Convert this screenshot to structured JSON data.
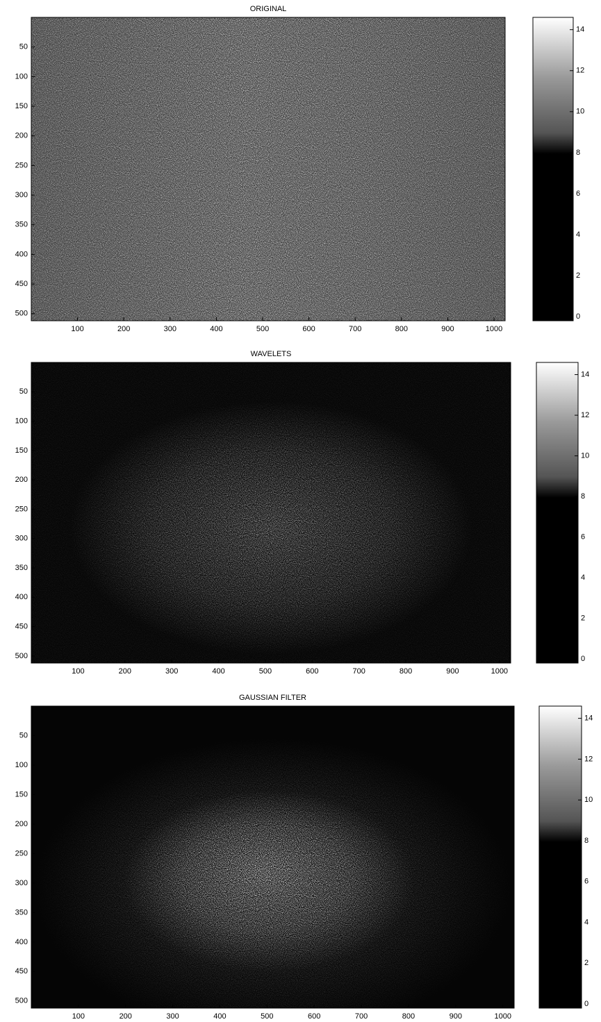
{
  "chart_data": [
    {
      "type": "heatmap",
      "title": "ORIGINAL",
      "colormap": "gray",
      "xlim": [
        0,
        1024
      ],
      "xticks": [
        100,
        200,
        300,
        400,
        500,
        600,
        700,
        800,
        900,
        1000
      ],
      "ylim": [
        0,
        512
      ],
      "yticks": [
        50,
        100,
        150,
        200,
        250,
        300,
        350,
        400,
        450,
        500
      ],
      "y_inverted": true,
      "clim": [
        -0.2,
        14.6
      ],
      "cticks": [
        0,
        2,
        4,
        6,
        8,
        10,
        12,
        14
      ]
    },
    {
      "type": "heatmap",
      "title": "WAVELETS",
      "colormap": "gray",
      "xlim": [
        0,
        1024
      ],
      "xticks": [
        100,
        200,
        300,
        400,
        500,
        600,
        700,
        800,
        900,
        1000
      ],
      "ylim": [
        0,
        512
      ],
      "yticks": [
        50,
        100,
        150,
        200,
        250,
        300,
        350,
        400,
        450,
        500
      ],
      "y_inverted": true,
      "clim": [
        -0.2,
        14.6
      ],
      "cticks": [
        0,
        2,
        4,
        6,
        8,
        10,
        12,
        14
      ]
    },
    {
      "type": "heatmap",
      "title": "GAUSSIAN FILTER",
      "colormap": "gray",
      "xlim": [
        0,
        1024
      ],
      "xticks": [
        100,
        200,
        300,
        400,
        500,
        600,
        700,
        800,
        900,
        1000
      ],
      "ylim": [
        0,
        512
      ],
      "yticks": [
        50,
        100,
        150,
        200,
        250,
        300,
        350,
        400,
        450,
        500
      ],
      "y_inverted": true,
      "clim": [
        -0.2,
        14.6
      ],
      "cticks": [
        0,
        2,
        4,
        6,
        8,
        10,
        12,
        14
      ]
    }
  ]
}
